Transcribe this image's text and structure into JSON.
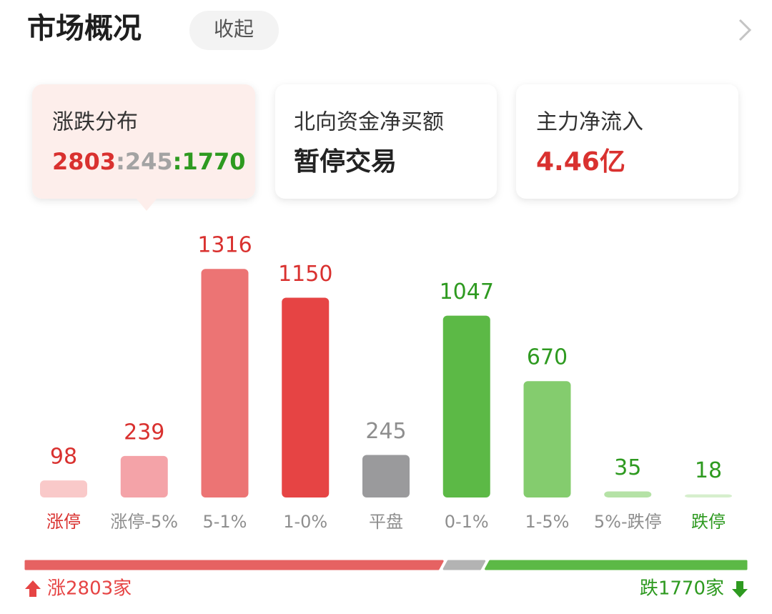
{
  "header": {
    "title": "市场概况",
    "collapse": "收起"
  },
  "cards": [
    {
      "label": "涨跌分布",
      "value": {
        "parts": [
          2803,
          245,
          1770
        ],
        "separator": ":",
        "colors": [
          "#d9312f",
          "#a3a3a3",
          "#2e9a20"
        ]
      }
    },
    {
      "label": "北向资金净买额",
      "value": "暂停交易",
      "color": "#222222"
    },
    {
      "label": "主力净流入",
      "value": "4.46亿",
      "color": "#d9312f"
    }
  ],
  "chart_data": {
    "type": "bar",
    "categories": [
      "涨停",
      "涨停-5%",
      "5-1%",
      "1-0%",
      "平盘",
      "0-1%",
      "1-5%",
      "5%-跌停",
      "跌停"
    ],
    "values": [
      98,
      239,
      1316,
      1150,
      245,
      1047,
      670,
      35,
      18
    ],
    "colors": [
      "#f9c9c9",
      "#f4a3a8",
      "#ec7474",
      "#e64444",
      "#9a9a9c",
      "#5cb946",
      "#84cc6e",
      "#b5e2a6",
      "#d6efcd"
    ],
    "value_label_colors": [
      "#d9312f",
      "#d9312f",
      "#d9312f",
      "#d9312f",
      "#8e8e8e",
      "#2e9a20",
      "#2e9a20",
      "#2e9a20",
      "#2e9a20"
    ],
    "category_label_colors": [
      "#d9312f",
      "#8e8e8e",
      "#8e8e8e",
      "#8e8e8e",
      "#8e8e8e",
      "#8e8e8e",
      "#8e8e8e",
      "#8e8e8e",
      "#2e9a20"
    ]
  },
  "footer": {
    "up": "涨2803家",
    "down": "跌1770家",
    "up_color": "#e64444",
    "down_color": "#2e9a20"
  }
}
